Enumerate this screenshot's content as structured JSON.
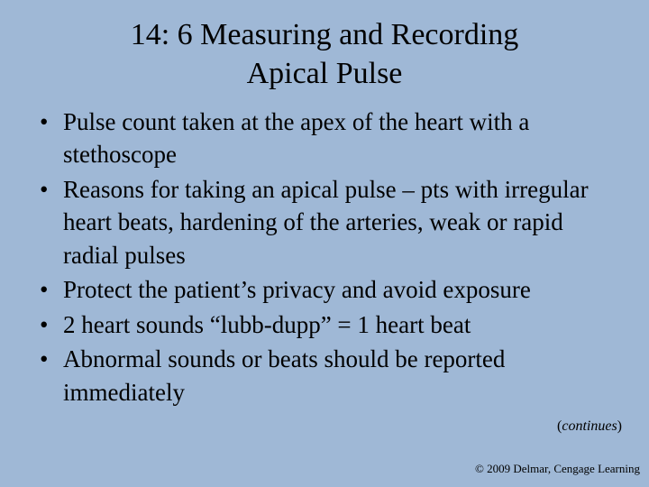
{
  "colors": {
    "background": "#9fb8d6",
    "text": "#000000"
  },
  "typography": {
    "font_family": "Times New Roman",
    "title_fontsize": 34,
    "bullet_fontsize": 27,
    "continues_fontsize": 16,
    "copyright_fontsize": 13
  },
  "title_line1": "14: 6 Measuring and Recording",
  "title_line2": "Apical Pulse",
  "bullets": [
    "Pulse count taken at the apex of the heart with a stethoscope",
    "Reasons for taking an apical pulse – pts with irregular heart beats, hardening of the arteries, weak or rapid radial pulses",
    "Protect the patient’s privacy and avoid exposure",
    " 2 heart sounds “lubb-dupp” = 1 heart beat",
    "Abnormal sounds or beats should be reported immediately"
  ],
  "continues_label": "continues",
  "copyright": "© 2009 Delmar, Cengage Learning"
}
